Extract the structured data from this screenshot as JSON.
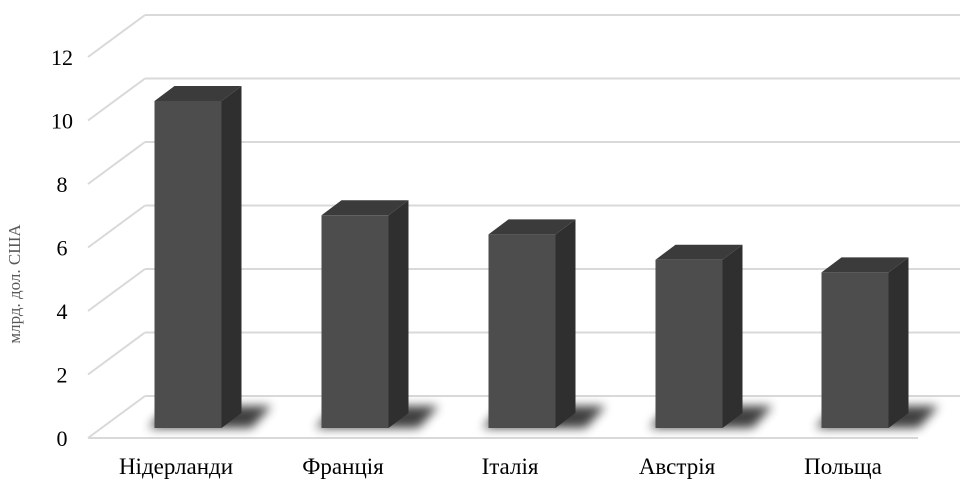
{
  "chart_data": {
    "type": "bar",
    "title": "",
    "xlabel": "",
    "ylabel": "млрд. дол. США",
    "categories": [
      "Нідерланди",
      "Франція",
      "Італія",
      "Австрія",
      "Польща"
    ],
    "values": [
      10.3,
      6.7,
      6.1,
      5.3,
      4.9
    ],
    "ylim": [
      0,
      12
    ],
    "yticks": [
      0,
      2,
      4,
      6,
      8,
      10,
      12
    ],
    "grid": true,
    "legend": "none",
    "style": "3d-column"
  },
  "colors": {
    "bar_front": "#4d4d4d",
    "bar_side": "#2f2f2f",
    "bar_top": "#3b3b3b",
    "gridline": "#d9d9d9",
    "shadow": "#000000"
  }
}
